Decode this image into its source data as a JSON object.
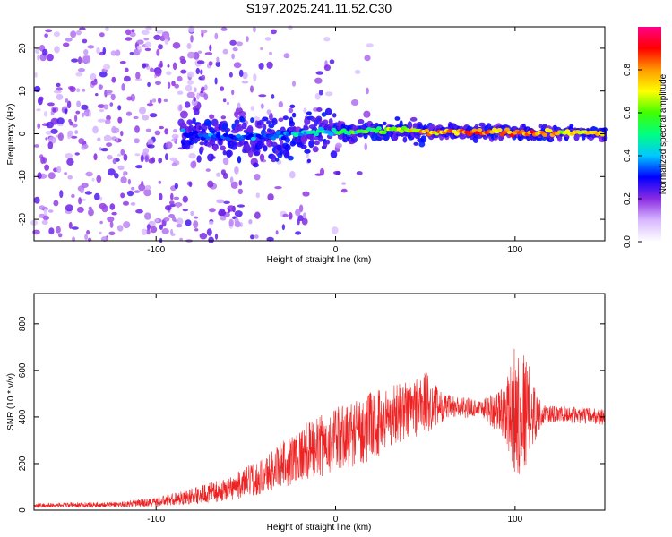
{
  "title": "S197.2025.241.11.52.C30",
  "chart_data": [
    {
      "type": "heatmap",
      "xlabel": "Height of straight line (km)",
      "ylabel": "Frequency (Hz)",
      "xlim": [
        -168,
        150
      ],
      "ylim": [
        -25,
        25
      ],
      "xticks": [
        -100,
        0,
        100
      ],
      "yticks": [
        -20,
        -10,
        0,
        10,
        20
      ],
      "colorbar": {
        "label": "Normalized spectral amplitude",
        "range": [
          0,
          1
        ],
        "ticks": [
          "0.0",
          "0.2",
          "0.4",
          "0.6",
          "0.8"
        ],
        "colors": [
          "#ffffff",
          "#d7b8ff",
          "#8a2be2",
          "#0000ff",
          "#00c8ff",
          "#00ff80",
          "#40ff00",
          "#ffff00",
          "#ff9900",
          "#ff0000",
          "#ff0088"
        ]
      },
      "ridge": [
        {
          "x": -85,
          "f": 0.0,
          "amp": 0.25
        },
        {
          "x": -60,
          "f": -1.0,
          "amp": 0.3
        },
        {
          "x": -30,
          "f": -0.5,
          "amp": 0.35
        },
        {
          "x": -10,
          "f": 0.5,
          "amp": 0.45
        },
        {
          "x": 10,
          "f": 0.5,
          "amp": 0.5
        },
        {
          "x": 30,
          "f": 1.0,
          "amp": 0.6
        },
        {
          "x": 50,
          "f": 0.5,
          "amp": 0.75
        },
        {
          "x": 70,
          "f": 0.5,
          "amp": 0.85
        },
        {
          "x": 90,
          "f": 0.5,
          "amp": 0.8
        },
        {
          "x": 110,
          "f": 0.0,
          "amp": 0.85
        },
        {
          "x": 130,
          "f": 0.5,
          "amp": 0.7
        },
        {
          "x": 150,
          "f": 0.0,
          "amp": 0.8
        }
      ]
    },
    {
      "type": "line",
      "xlabel": "Height of straight line (km)",
      "ylabel": "SNR (10 * v/v)",
      "xlim": [
        -168,
        150
      ],
      "ylim": [
        0,
        930
      ],
      "xticks": [
        -100,
        0,
        100
      ],
      "yticks": [
        0,
        200,
        400,
        600,
        800
      ],
      "color": "#ee2222",
      "envelope": [
        {
          "x": -168,
          "mean": 20,
          "spread": 10
        },
        {
          "x": -120,
          "mean": 25,
          "spread": 12
        },
        {
          "x": -100,
          "mean": 35,
          "spread": 20
        },
        {
          "x": -80,
          "mean": 60,
          "spread": 35
        },
        {
          "x": -60,
          "mean": 90,
          "spread": 50
        },
        {
          "x": -40,
          "mean": 150,
          "spread": 80
        },
        {
          "x": -20,
          "mean": 240,
          "spread": 120
        },
        {
          "x": 0,
          "mean": 300,
          "spread": 140
        },
        {
          "x": 20,
          "mean": 360,
          "spread": 150
        },
        {
          "x": 35,
          "mean": 420,
          "spread": 130
        },
        {
          "x": 50,
          "mean": 460,
          "spread": 140
        },
        {
          "x": 60,
          "mean": 440,
          "spread": 60
        },
        {
          "x": 80,
          "mean": 440,
          "spread": 35
        },
        {
          "x": 95,
          "mean": 420,
          "spread": 120
        },
        {
          "x": 100,
          "mean": 430,
          "spread": 300
        },
        {
          "x": 105,
          "mean": 430,
          "spread": 260
        },
        {
          "x": 115,
          "mean": 410,
          "spread": 40
        },
        {
          "x": 130,
          "mean": 410,
          "spread": 35
        },
        {
          "x": 150,
          "mean": 400,
          "spread": 35
        }
      ]
    }
  ]
}
